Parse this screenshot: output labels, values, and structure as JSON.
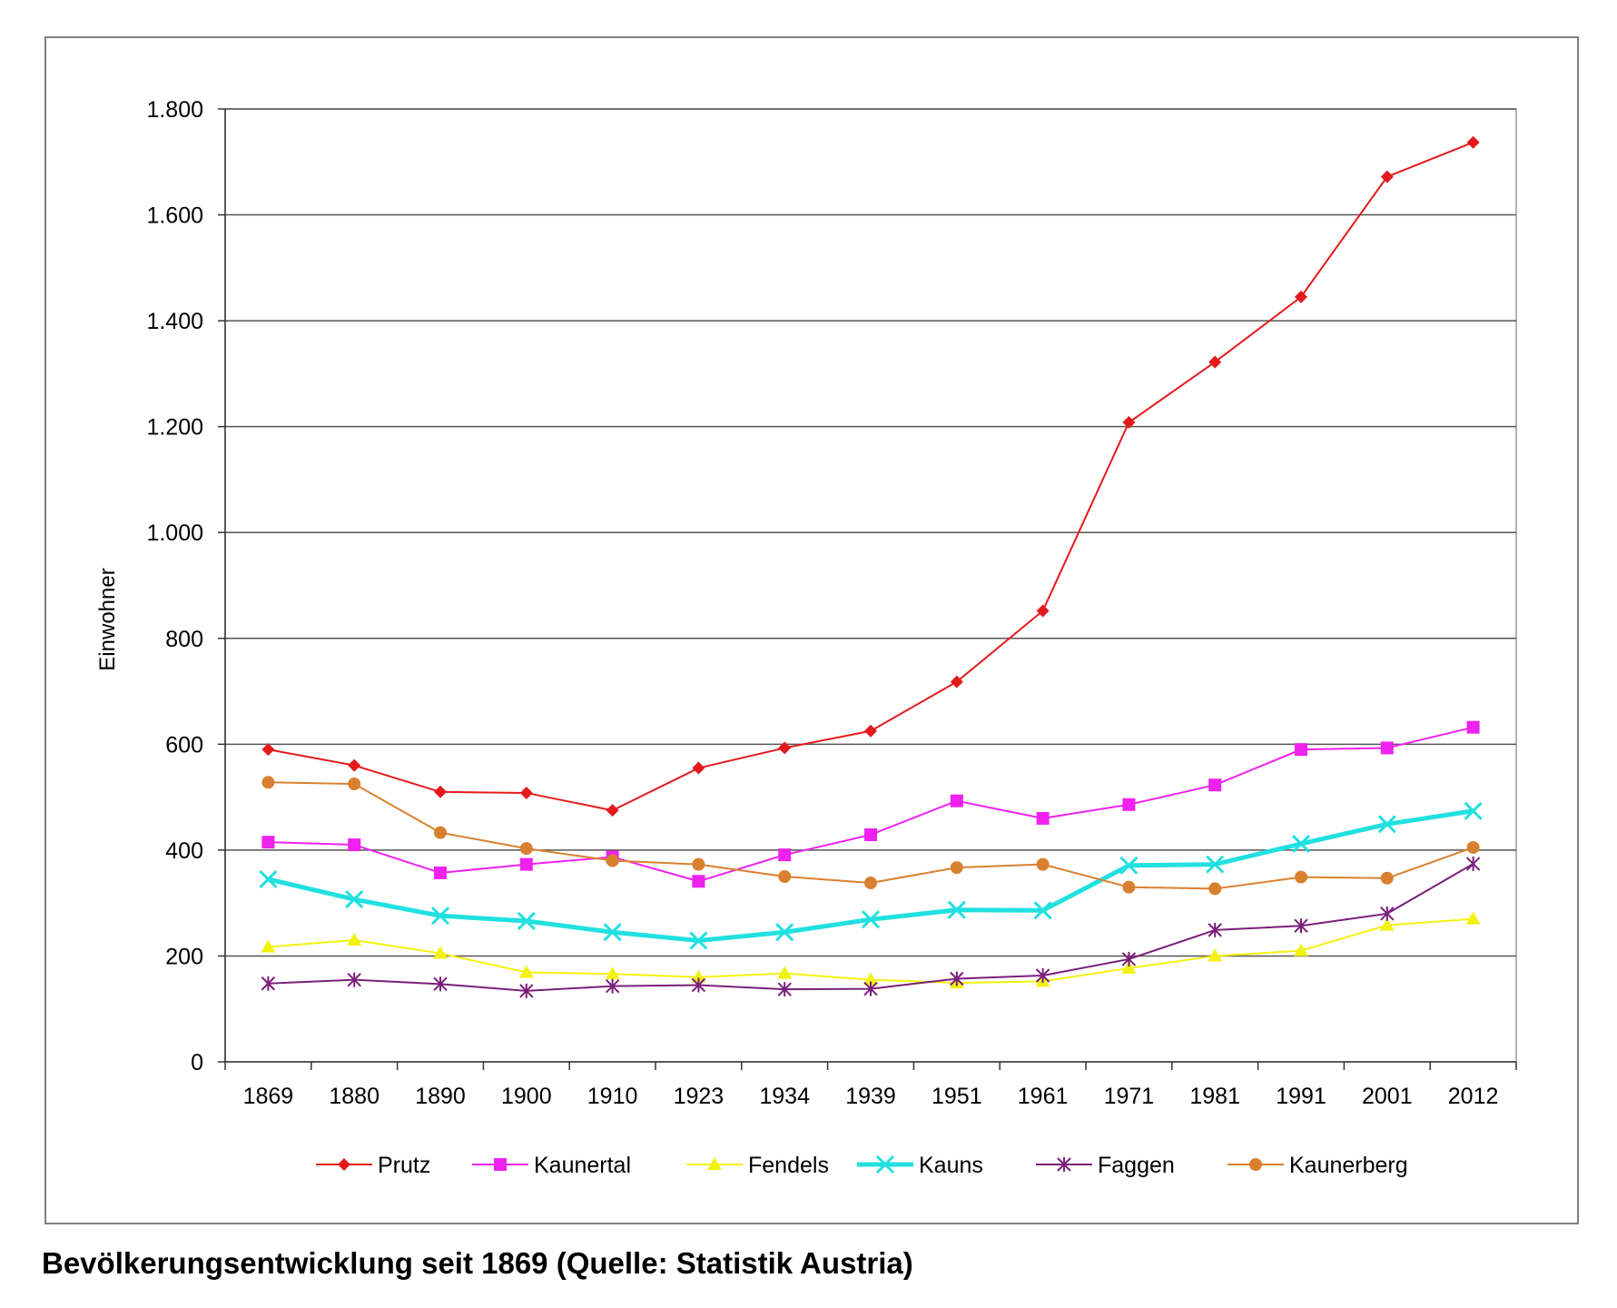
{
  "chart_data": {
    "type": "line",
    "xlabel": "",
    "ylabel": "Einwohner",
    "ylim": [
      0,
      1800
    ],
    "yticks": [
      0,
      200,
      400,
      600,
      800,
      1000,
      1200,
      1400,
      1600,
      1800
    ],
    "ytick_labels": [
      "0",
      "200",
      "400",
      "600",
      "800",
      "1.000",
      "1.200",
      "1.400",
      "1.600",
      "1.800"
    ],
    "categories": [
      "1869",
      "1880",
      "1890",
      "1900",
      "1910",
      "1923",
      "1934",
      "1939",
      "1951",
      "1961",
      "1971",
      "1981",
      "1991",
      "2001",
      "2012"
    ],
    "grid": "horizontal",
    "legend_position": "bottom",
    "series": [
      {
        "name": "Prutz",
        "color": "#e31a1c",
        "marker": "diamond",
        "values": [
          590,
          560,
          510,
          508,
          475,
          555,
          593,
          625,
          718,
          852,
          1208,
          1322,
          1445,
          1672,
          1737
        ]
      },
      {
        "name": "Kaunertal",
        "color": "#ee22ee",
        "marker": "square",
        "values": [
          415,
          410,
          357,
          373,
          387,
          341,
          391,
          429,
          493,
          460,
          486,
          523,
          590,
          593,
          632
        ]
      },
      {
        "name": "Fendels",
        "color": "#f2f20f",
        "marker": "triangle",
        "values": [
          217,
          230,
          205,
          169,
          166,
          160,
          167,
          155,
          149,
          152,
          177,
          200,
          210,
          258,
          270
        ]
      },
      {
        "name": "Kauns",
        "color": "#22e0e0",
        "marker": "x",
        "values": [
          345,
          307,
          276,
          266,
          245,
          229,
          245,
          269,
          287,
          286,
          371,
          373,
          412,
          449,
          474
        ]
      },
      {
        "name": "Faggen",
        "color": "#7a1f7a",
        "marker": "star",
        "values": [
          148,
          155,
          147,
          134,
          143,
          145,
          137,
          138,
          157,
          163,
          194,
          249,
          257,
          280,
          374
        ]
      },
      {
        "name": "Kaunerberg",
        "color": "#d98030",
        "marker": "circle",
        "values": [
          528,
          525,
          433,
          403,
          380,
          373,
          350,
          338,
          367,
          373,
          330,
          327,
          349,
          347,
          405
        ]
      }
    ]
  },
  "caption": "Bevölkerungsentwicklung seit 1869 (Quelle: Statistik Austria)"
}
